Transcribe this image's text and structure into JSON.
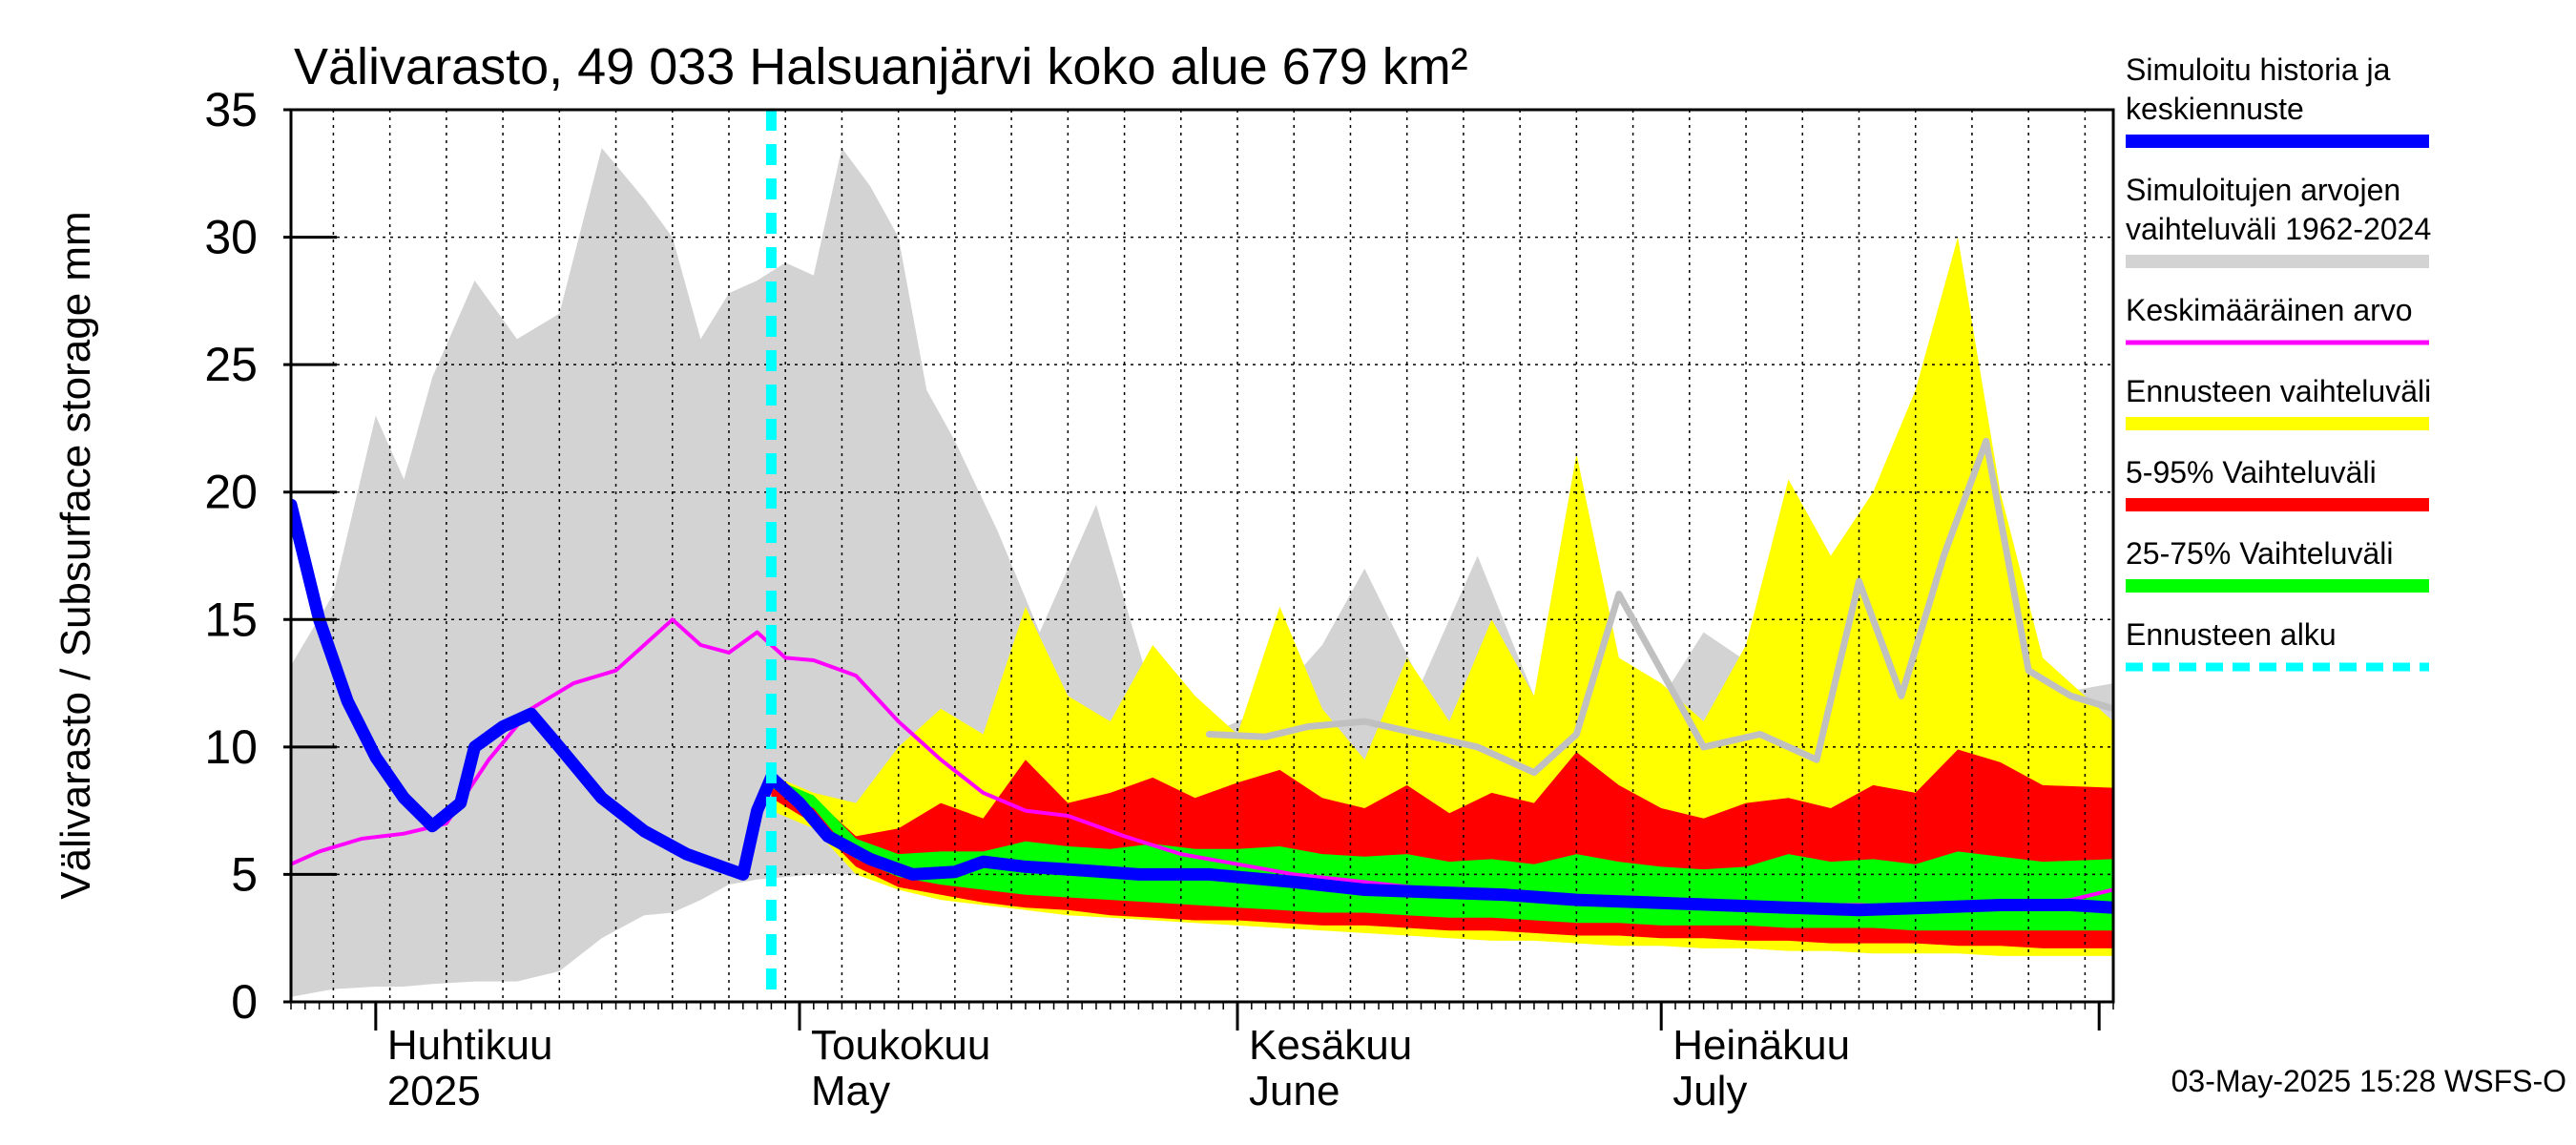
{
  "chart_data": {
    "type": "area",
    "title": "Välivarasto, 49 033 Halsuanjärvi koko alue 679 km²",
    "ylabel": "Välivarasto / Subsurface storage  mm",
    "ylim": [
      0,
      35
    ],
    "yticks": [
      0,
      5,
      10,
      15,
      20,
      25,
      30,
      35
    ],
    "xlim": [
      "2025-03-26",
      "2025-08-02"
    ],
    "x_month_labels": [
      {
        "date": "2025-04-01",
        "line1": "Huhtikuu",
        "line2": "2025"
      },
      {
        "date": "2025-05-01",
        "line1": "Toukokuu",
        "line2": "May"
      },
      {
        "date": "2025-06-01",
        "line1": "Kesäkuu",
        "line2": "June"
      },
      {
        "date": "2025-07-01",
        "line1": "Heinäkuu",
        "line2": "July"
      }
    ],
    "grid": true,
    "legend_position": "right",
    "forecast_start": "2025-04-29",
    "timestamp": "03-May-2025 15:28 WSFS-O",
    "legend": [
      {
        "key": "hist",
        "line1": "Simuloitu historia ja",
        "line2": "keskiennuste",
        "color": "#0000ff",
        "style": "thick"
      },
      {
        "key": "range",
        "line1": "Simuloitujen arvojen",
        "line2": "vaihteluväli 1962-2024",
        "color": "#d3d3d3",
        "style": "thick"
      },
      {
        "key": "mean",
        "line1": "Keskimääräinen arvo",
        "line2": "",
        "color": "#ff00ff",
        "style": "thin"
      },
      {
        "key": "fcrange",
        "line1": "Ennusteen vaihteluväli",
        "line2": "",
        "color": "#ffff00",
        "style": "thick"
      },
      {
        "key": "p595",
        "line1": "5-95% Vaihteluväli",
        "line2": "",
        "color": "#ff0000",
        "style": "thick"
      },
      {
        "key": "p2575",
        "line1": "25-75% Vaihteluväli",
        "line2": "",
        "color": "#00ff00",
        "style": "thick"
      },
      {
        "key": "fcstart",
        "line1": "Ennusteen alku",
        "line2": "",
        "color": "#00ffff",
        "style": "dashed"
      }
    ],
    "series": [
      {
        "name": "Simuloitujen arvojen vaihteluväli 1962-2024",
        "kind": "band",
        "color": "#d3d3d3",
        "x": [
          "2025-03-26",
          "2025-03-29",
          "2025-04-01",
          "2025-04-03",
          "2025-04-05",
          "2025-04-08",
          "2025-04-11",
          "2025-04-14",
          "2025-04-17",
          "2025-04-20",
          "2025-04-22",
          "2025-04-24",
          "2025-04-26",
          "2025-04-28",
          "2025-04-30",
          "2025-05-02",
          "2025-05-04",
          "2025-05-06",
          "2025-05-08",
          "2025-05-10",
          "2025-05-12",
          "2025-05-15",
          "2025-05-18",
          "2025-05-22",
          "2025-05-26",
          "2025-05-30",
          "2025-06-03",
          "2025-06-07",
          "2025-06-10",
          "2025-06-14",
          "2025-06-18",
          "2025-06-22",
          "2025-06-26",
          "2025-06-30",
          "2025-07-04",
          "2025-07-08",
          "2025-07-12",
          "2025-07-16",
          "2025-07-20",
          "2025-07-24",
          "2025-07-28",
          "2025-08-02"
        ],
        "low": [
          0.2,
          0.5,
          0.6,
          0.6,
          0.7,
          0.8,
          0.8,
          1.2,
          2.5,
          3.4,
          3.5,
          4.0,
          4.6,
          4.8,
          4.9,
          5.0,
          5.0,
          5.0,
          4.9,
          4.8,
          4.7,
          4.5,
          4.3,
          4.0,
          3.7,
          3.5,
          3.3,
          3.2,
          3.0,
          2.9,
          2.8,
          2.7,
          2.6,
          2.5,
          2.4,
          2.3,
          2.2,
          2.2,
          2.1,
          2.0,
          1.9,
          1.8
        ],
        "high": [
          13.2,
          16.0,
          23.0,
          20.5,
          24.5,
          28.3,
          26.0,
          27.0,
          33.5,
          31.5,
          30.0,
          26.0,
          27.8,
          28.3,
          29.0,
          28.5,
          33.5,
          32.0,
          30.0,
          24.0,
          22.0,
          18.5,
          14.5,
          19.5,
          12.0,
          10.5,
          11.5,
          14.0,
          17.0,
          12.5,
          17.5,
          12.0,
          11.5,
          11.0,
          14.5,
          13.0,
          12.0,
          18.0,
          13.5,
          12.0,
          12.0,
          12.5
        ]
      },
      {
        "name": "Ennusteen vaihteluväli",
        "kind": "band",
        "color": "#ffff00",
        "x": [
          "2025-04-29",
          "2025-05-02",
          "2025-05-05",
          "2025-05-08",
          "2025-05-11",
          "2025-05-14",
          "2025-05-17",
          "2025-05-20",
          "2025-05-23",
          "2025-05-26",
          "2025-05-29",
          "2025-06-01",
          "2025-06-04",
          "2025-06-07",
          "2025-06-10",
          "2025-06-13",
          "2025-06-16",
          "2025-06-19",
          "2025-06-22",
          "2025-06-25",
          "2025-06-28",
          "2025-07-01",
          "2025-07-04",
          "2025-07-07",
          "2025-07-10",
          "2025-07-13",
          "2025-07-16",
          "2025-07-19",
          "2025-07-22",
          "2025-07-25",
          "2025-07-28",
          "2025-08-02"
        ],
        "low": [
          7.5,
          6.8,
          5.0,
          4.4,
          4.0,
          3.8,
          3.6,
          3.4,
          3.3,
          3.2,
          3.1,
          3.0,
          2.9,
          2.8,
          2.7,
          2.6,
          2.5,
          2.4,
          2.4,
          2.3,
          2.2,
          2.2,
          2.1,
          2.1,
          2.0,
          2.0,
          1.9,
          1.9,
          1.9,
          1.8,
          1.8,
          1.8
        ],
        "high": [
          8.9,
          8.2,
          7.8,
          10.0,
          11.5,
          10.5,
          15.5,
          12.0,
          11.0,
          14.0,
          12.0,
          10.5,
          15.5,
          11.5,
          9.5,
          13.5,
          11.0,
          15.0,
          12.0,
          21.5,
          13.5,
          12.5,
          11.0,
          14.0,
          20.5,
          17.5,
          20.0,
          24.0,
          30.0,
          20.0,
          13.5,
          11.0
        ]
      },
      {
        "name": "5-95% Vaihteluväli",
        "kind": "band",
        "color": "#ff0000",
        "x": [
          "2025-04-29",
          "2025-05-02",
          "2025-05-05",
          "2025-05-08",
          "2025-05-11",
          "2025-05-14",
          "2025-05-17",
          "2025-05-20",
          "2025-05-23",
          "2025-05-26",
          "2025-05-29",
          "2025-06-01",
          "2025-06-04",
          "2025-06-07",
          "2025-06-10",
          "2025-06-13",
          "2025-06-16",
          "2025-06-19",
          "2025-06-22",
          "2025-06-25",
          "2025-06-28",
          "2025-07-01",
          "2025-07-04",
          "2025-07-07",
          "2025-07-10",
          "2025-07-13",
          "2025-07-16",
          "2025-07-19",
          "2025-07-22",
          "2025-07-25",
          "2025-07-28",
          "2025-08-02"
        ],
        "low": [
          8.0,
          7.0,
          5.3,
          4.5,
          4.2,
          3.9,
          3.7,
          3.6,
          3.4,
          3.3,
          3.2,
          3.2,
          3.1,
          3.0,
          3.0,
          2.9,
          2.8,
          2.8,
          2.7,
          2.6,
          2.6,
          2.5,
          2.5,
          2.4,
          2.4,
          2.3,
          2.3,
          2.3,
          2.2,
          2.2,
          2.1,
          2.1
        ],
        "high": [
          8.7,
          8.0,
          6.5,
          6.8,
          7.8,
          7.2,
          9.5,
          7.8,
          8.2,
          8.8,
          8.0,
          8.6,
          9.1,
          8.0,
          7.6,
          8.5,
          7.4,
          8.2,
          7.8,
          9.8,
          8.5,
          7.6,
          7.2,
          7.8,
          8.0,
          7.6,
          8.5,
          8.2,
          9.9,
          9.4,
          8.5,
          8.4
        ]
      },
      {
        "name": "25-75% Vaihteluväli",
        "kind": "band",
        "color": "#00ff00",
        "x": [
          "2025-04-29",
          "2025-05-02",
          "2025-05-05",
          "2025-05-08",
          "2025-05-11",
          "2025-05-14",
          "2025-05-17",
          "2025-05-20",
          "2025-05-23",
          "2025-05-26",
          "2025-05-29",
          "2025-06-01",
          "2025-06-04",
          "2025-06-07",
          "2025-06-10",
          "2025-06-13",
          "2025-06-16",
          "2025-06-19",
          "2025-06-22",
          "2025-06-25",
          "2025-06-28",
          "2025-07-01",
          "2025-07-04",
          "2025-07-07",
          "2025-07-10",
          "2025-07-13",
          "2025-07-16",
          "2025-07-19",
          "2025-07-22",
          "2025-07-25",
          "2025-07-28",
          "2025-08-02"
        ],
        "low": [
          8.4,
          7.6,
          5.6,
          4.9,
          4.6,
          4.4,
          4.2,
          4.1,
          4.0,
          3.9,
          3.8,
          3.7,
          3.6,
          3.5,
          3.5,
          3.4,
          3.3,
          3.3,
          3.2,
          3.1,
          3.1,
          3.0,
          3.0,
          3.0,
          2.9,
          2.9,
          2.9,
          2.8,
          2.8,
          2.8,
          2.8,
          2.8
        ],
        "high": [
          8.8,
          8.1,
          6.4,
          5.8,
          5.9,
          5.9,
          6.3,
          6.1,
          6.0,
          6.2,
          6.0,
          6.0,
          6.1,
          5.8,
          5.7,
          5.8,
          5.5,
          5.6,
          5.4,
          5.8,
          5.5,
          5.3,
          5.2,
          5.3,
          5.8,
          5.5,
          5.6,
          5.4,
          5.9,
          5.7,
          5.5,
          5.6
        ]
      },
      {
        "name": "Simuloitu historia ja keskiennuste (max)",
        "kind": "line",
        "color": "#c0c0c0",
        "x": [
          "2025-05-30",
          "2025-06-03",
          "2025-06-06",
          "2025-06-10",
          "2025-06-14",
          "2025-06-18",
          "2025-06-22",
          "2025-06-25",
          "2025-06-28",
          "2025-07-01",
          "2025-07-04",
          "2025-07-08",
          "2025-07-12",
          "2025-07-15",
          "2025-07-18",
          "2025-07-21",
          "2025-07-24",
          "2025-07-27",
          "2025-07-30",
          "2025-08-02"
        ],
        "y": [
          10.5,
          10.4,
          10.8,
          11.0,
          10.5,
          10.0,
          9.0,
          10.5,
          16.0,
          13.0,
          10.0,
          10.5,
          9.5,
          16.5,
          12.0,
          17.5,
          22.0,
          13.0,
          12.0,
          11.5
        ]
      },
      {
        "name": "Keskimääräinen arvo",
        "kind": "line",
        "color": "#ff00ff",
        "x": [
          "2025-03-26",
          "2025-03-28",
          "2025-03-31",
          "2025-04-03",
          "2025-04-06",
          "2025-04-09",
          "2025-04-12",
          "2025-04-15",
          "2025-04-18",
          "2025-04-20",
          "2025-04-22",
          "2025-04-24",
          "2025-04-26",
          "2025-04-28",
          "2025-04-30",
          "2025-05-02",
          "2025-05-05",
          "2025-05-08",
          "2025-05-11",
          "2025-05-14",
          "2025-05-17",
          "2025-05-20",
          "2025-05-24",
          "2025-05-28",
          "2025-06-01",
          "2025-06-05",
          "2025-06-10",
          "2025-06-15",
          "2025-06-20",
          "2025-06-25",
          "2025-06-30",
          "2025-07-05",
          "2025-07-10",
          "2025-07-15",
          "2025-07-20",
          "2025-07-25",
          "2025-07-30",
          "2025-08-02"
        ],
        "y": [
          5.4,
          5.9,
          6.4,
          6.6,
          7.0,
          9.5,
          11.5,
          12.5,
          13.0,
          14.0,
          15.0,
          14.0,
          13.7,
          14.5,
          13.5,
          13.4,
          12.8,
          11.0,
          9.5,
          8.2,
          7.5,
          7.3,
          6.5,
          5.8,
          5.4,
          5.0,
          4.7,
          4.4,
          4.2,
          4.1,
          4.0,
          3.9,
          3.8,
          3.8,
          3.7,
          3.8,
          4.0,
          4.4
        ]
      },
      {
        "name": "Simuloitu historia ja keskiennuste",
        "kind": "line",
        "color": "#0000ff",
        "x": [
          "2025-03-26",
          "2025-03-28",
          "2025-03-30",
          "2025-04-01",
          "2025-04-03",
          "2025-04-05",
          "2025-04-07",
          "2025-04-08",
          "2025-04-10",
          "2025-04-12",
          "2025-04-14",
          "2025-04-17",
          "2025-04-20",
          "2025-04-23",
          "2025-04-26",
          "2025-04-27",
          "2025-04-28",
          "2025-04-29",
          "2025-05-01",
          "2025-05-03",
          "2025-05-06",
          "2025-05-09",
          "2025-05-12",
          "2025-05-14",
          "2025-05-17",
          "2025-05-20",
          "2025-05-25",
          "2025-05-30",
          "2025-06-05",
          "2025-06-10",
          "2025-06-15",
          "2025-06-20",
          "2025-06-25",
          "2025-06-30",
          "2025-07-05",
          "2025-07-10",
          "2025-07-15",
          "2025-07-20",
          "2025-07-25",
          "2025-07-30",
          "2025-08-02"
        ],
        "y": [
          19.5,
          15.0,
          11.8,
          9.6,
          8.0,
          6.9,
          7.8,
          10.0,
          10.8,
          11.3,
          10.0,
          8.0,
          6.7,
          5.8,
          5.2,
          5.0,
          7.5,
          8.8,
          7.8,
          6.5,
          5.6,
          5.0,
          5.1,
          5.5,
          5.3,
          5.2,
          5.0,
          5.0,
          4.7,
          4.4,
          4.3,
          4.2,
          4.0,
          3.9,
          3.8,
          3.7,
          3.6,
          3.7,
          3.8,
          3.8,
          3.7
        ]
      }
    ]
  }
}
